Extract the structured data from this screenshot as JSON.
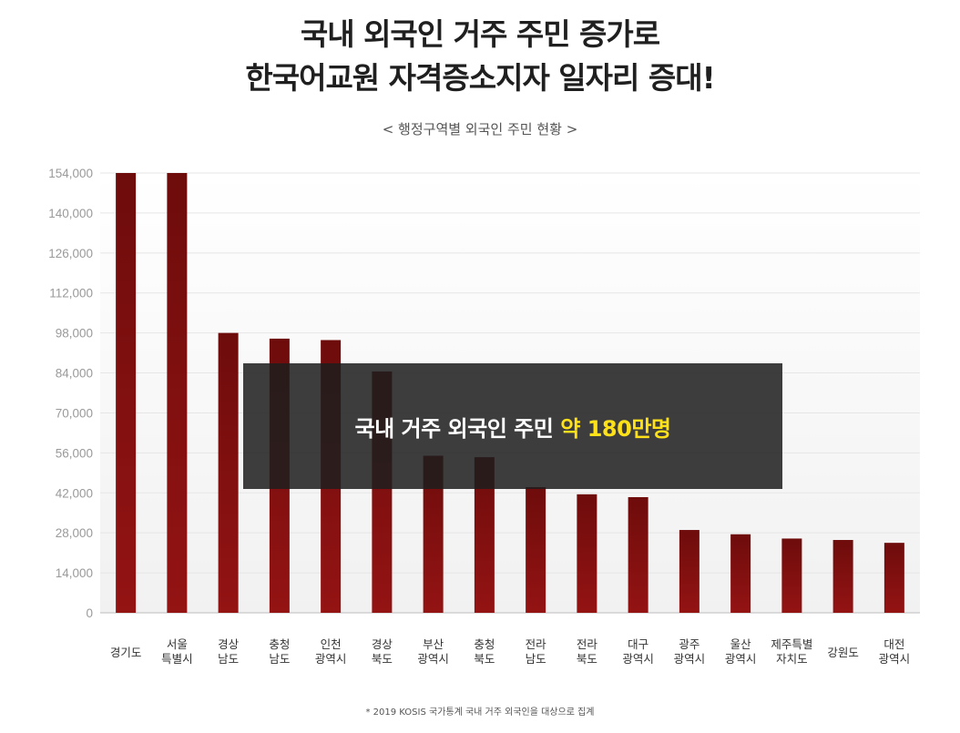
{
  "headline": {
    "line1": "국내 외국인 거주 주민 증가로",
    "line2": "한국어교원 자격증소지자 일자리 증대!"
  },
  "subtitle": "< 행정구역별 외국인 주민 현황 >",
  "overlay": {
    "text": "국내 거주 외국인 주민",
    "highlight": "약 180만명"
  },
  "footnote": "* 2019 KOSIS 국가통계 국내 거주 외국인을 대상으로 집계",
  "colors": {
    "bar": "#8c1212",
    "bar_dark": "#6e0c0c",
    "overlay_bg": "#1e1e1e",
    "highlight": "#ffe11a"
  },
  "chart_data": {
    "type": "bar",
    "categories": [
      [
        "경기도"
      ],
      [
        "서울",
        "특별시"
      ],
      [
        "경상",
        "남도"
      ],
      [
        "충청",
        "남도"
      ],
      [
        "인천",
        "광역시"
      ],
      [
        "경상",
        "북도"
      ],
      [
        "부산",
        "광역시"
      ],
      [
        "충청",
        "북도"
      ],
      [
        "전라",
        "남도"
      ],
      [
        "전라",
        "북도"
      ],
      [
        "대구",
        "광역시"
      ],
      [
        "광주",
        "광역시"
      ],
      [
        "울산",
        "광역시"
      ],
      [
        "제주특별",
        "자치도"
      ],
      [
        "강원도"
      ],
      [
        "대전",
        "광역시"
      ]
    ],
    "values": [
      154000,
      154000,
      98000,
      96000,
      95500,
      84500,
      55000,
      54500,
      44000,
      41500,
      40500,
      29000,
      27500,
      26000,
      25500,
      24500
    ],
    "y_ticks": [
      "154,000",
      "140,000",
      "126,000",
      "112,000",
      "98,000",
      "84,000",
      "70,000",
      "56,000",
      "42,000",
      "28,000",
      "14,000",
      "0"
    ],
    "ylim": [
      0,
      154000
    ],
    "grid": true
  }
}
